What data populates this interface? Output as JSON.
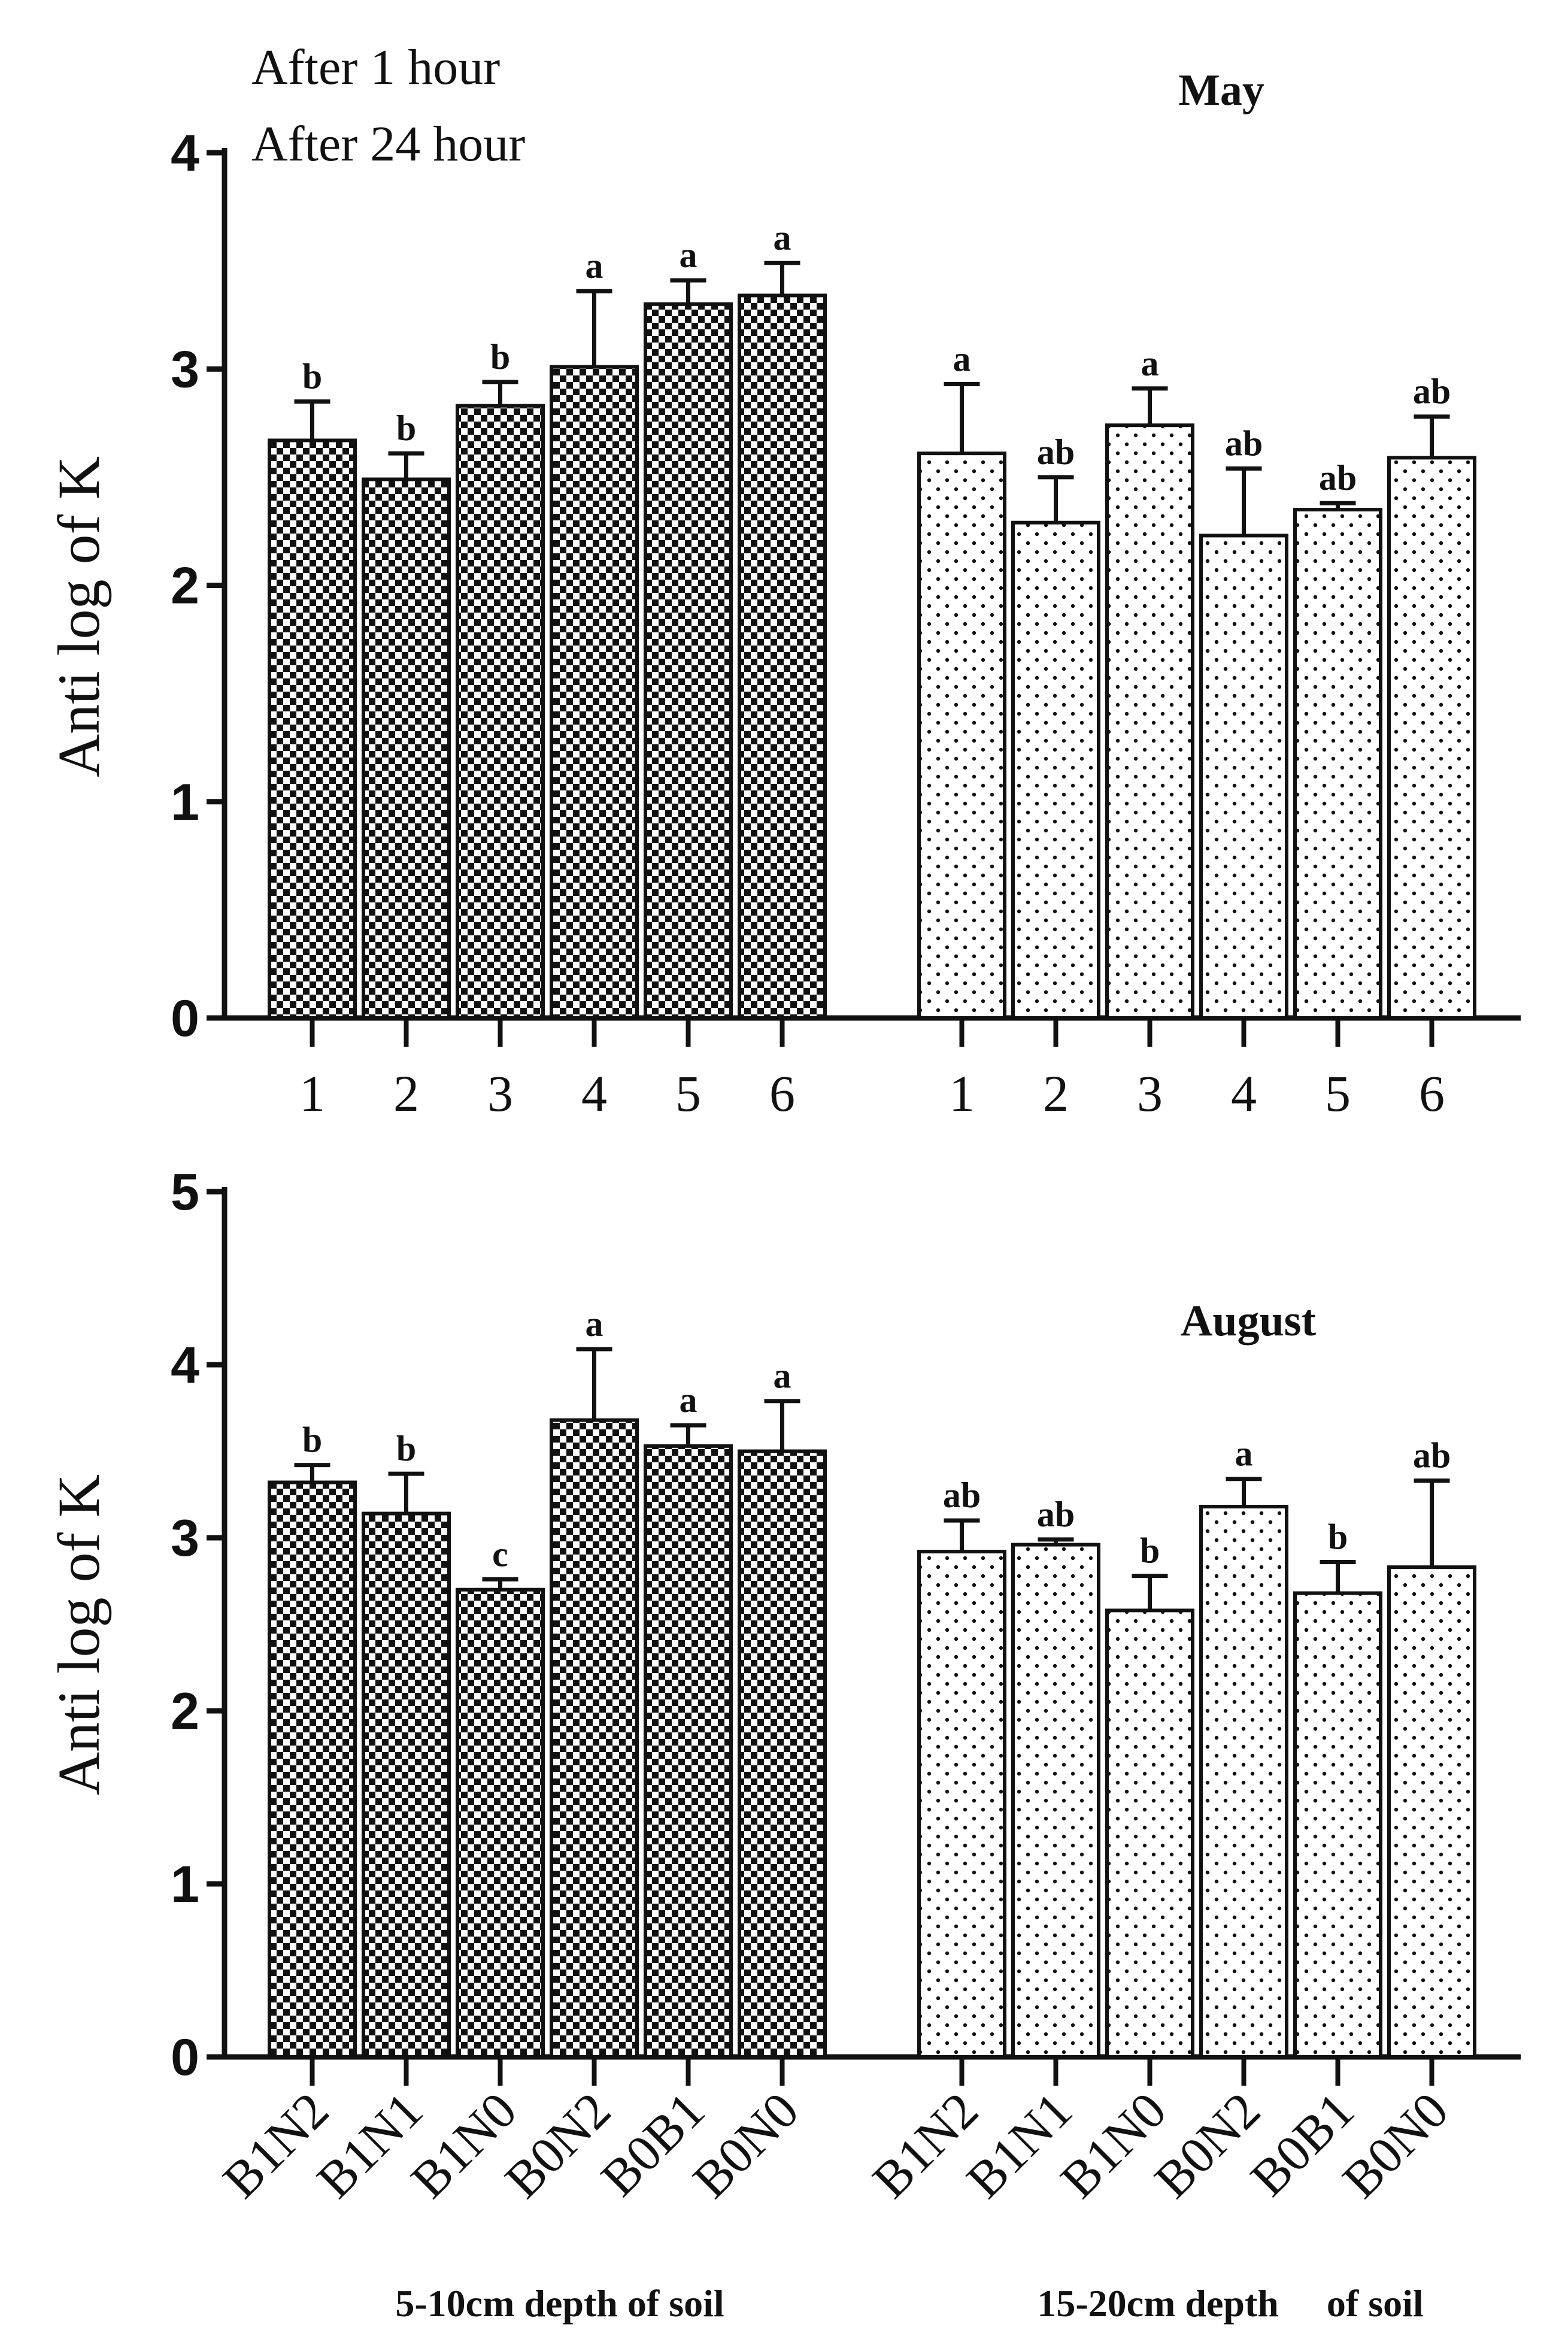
{
  "legend": {
    "item1": "After 1 hour",
    "item2": "After 24 hour"
  },
  "chart_data": [
    {
      "type": "bar",
      "title": "May",
      "ylabel": "Anti log of K",
      "xlabel": "",
      "ylim": [
        0,
        4
      ],
      "yticks": [
        "0",
        "1",
        "2",
        "3",
        "4"
      ],
      "groups": [
        {
          "name": "After 1 hour",
          "categories": [
            "1",
            "2",
            "3",
            "4",
            "5",
            "6"
          ],
          "values": [
            2.67,
            2.49,
            2.83,
            3.01,
            3.3,
            3.34
          ],
          "errors": [
            0.18,
            0.12,
            0.11,
            0.35,
            0.11,
            0.15
          ],
          "labels": [
            "b",
            "b",
            "b",
            "a",
            "a",
            "a"
          ]
        },
        {
          "name": "After 24 hour",
          "categories": [
            "1",
            "2",
            "3",
            "4",
            "5",
            "6"
          ],
          "values": [
            2.61,
            2.29,
            2.74,
            2.23,
            2.35,
            2.59
          ],
          "errors": [
            0.32,
            0.21,
            0.17,
            0.31,
            0.03,
            0.19
          ],
          "labels": [
            "a",
            "ab",
            "a",
            "ab",
            "ab",
            "ab"
          ]
        }
      ]
    },
    {
      "type": "bar",
      "title": "August",
      "ylabel": "Anti log of K",
      "xlabel": "",
      "ylim": [
        0,
        5
      ],
      "yticks": [
        "0",
        "1",
        "2",
        "3",
        "4",
        "5"
      ],
      "groups": [
        {
          "name": "After 1 hour",
          "categories": [
            "B1N2",
            "B1N1",
            "B1N0",
            "B0N2",
            "B0B1",
            "B0N0"
          ],
          "values": [
            3.32,
            3.14,
            2.7,
            3.68,
            3.53,
            3.5
          ],
          "errors": [
            0.1,
            0.23,
            0.06,
            0.41,
            0.12,
            0.29
          ],
          "labels": [
            "b",
            "b",
            "c",
            "a",
            "a",
            "a"
          ],
          "group_label": "5-10cm depth of soil"
        },
        {
          "name": "After 24 hour",
          "categories": [
            "B1N2",
            "B1N1",
            "B1N0",
            "B0N2",
            "B0B1",
            "B0N0"
          ],
          "values": [
            2.92,
            2.96,
            2.58,
            3.18,
            2.68,
            2.83
          ],
          "errors": [
            0.18,
            0.03,
            0.2,
            0.16,
            0.18,
            0.5
          ],
          "labels": [
            "ab",
            "ab",
            "b",
            "a",
            "b",
            "ab"
          ],
          "group_label": "15-20cm depth     of soil"
        }
      ]
    }
  ]
}
